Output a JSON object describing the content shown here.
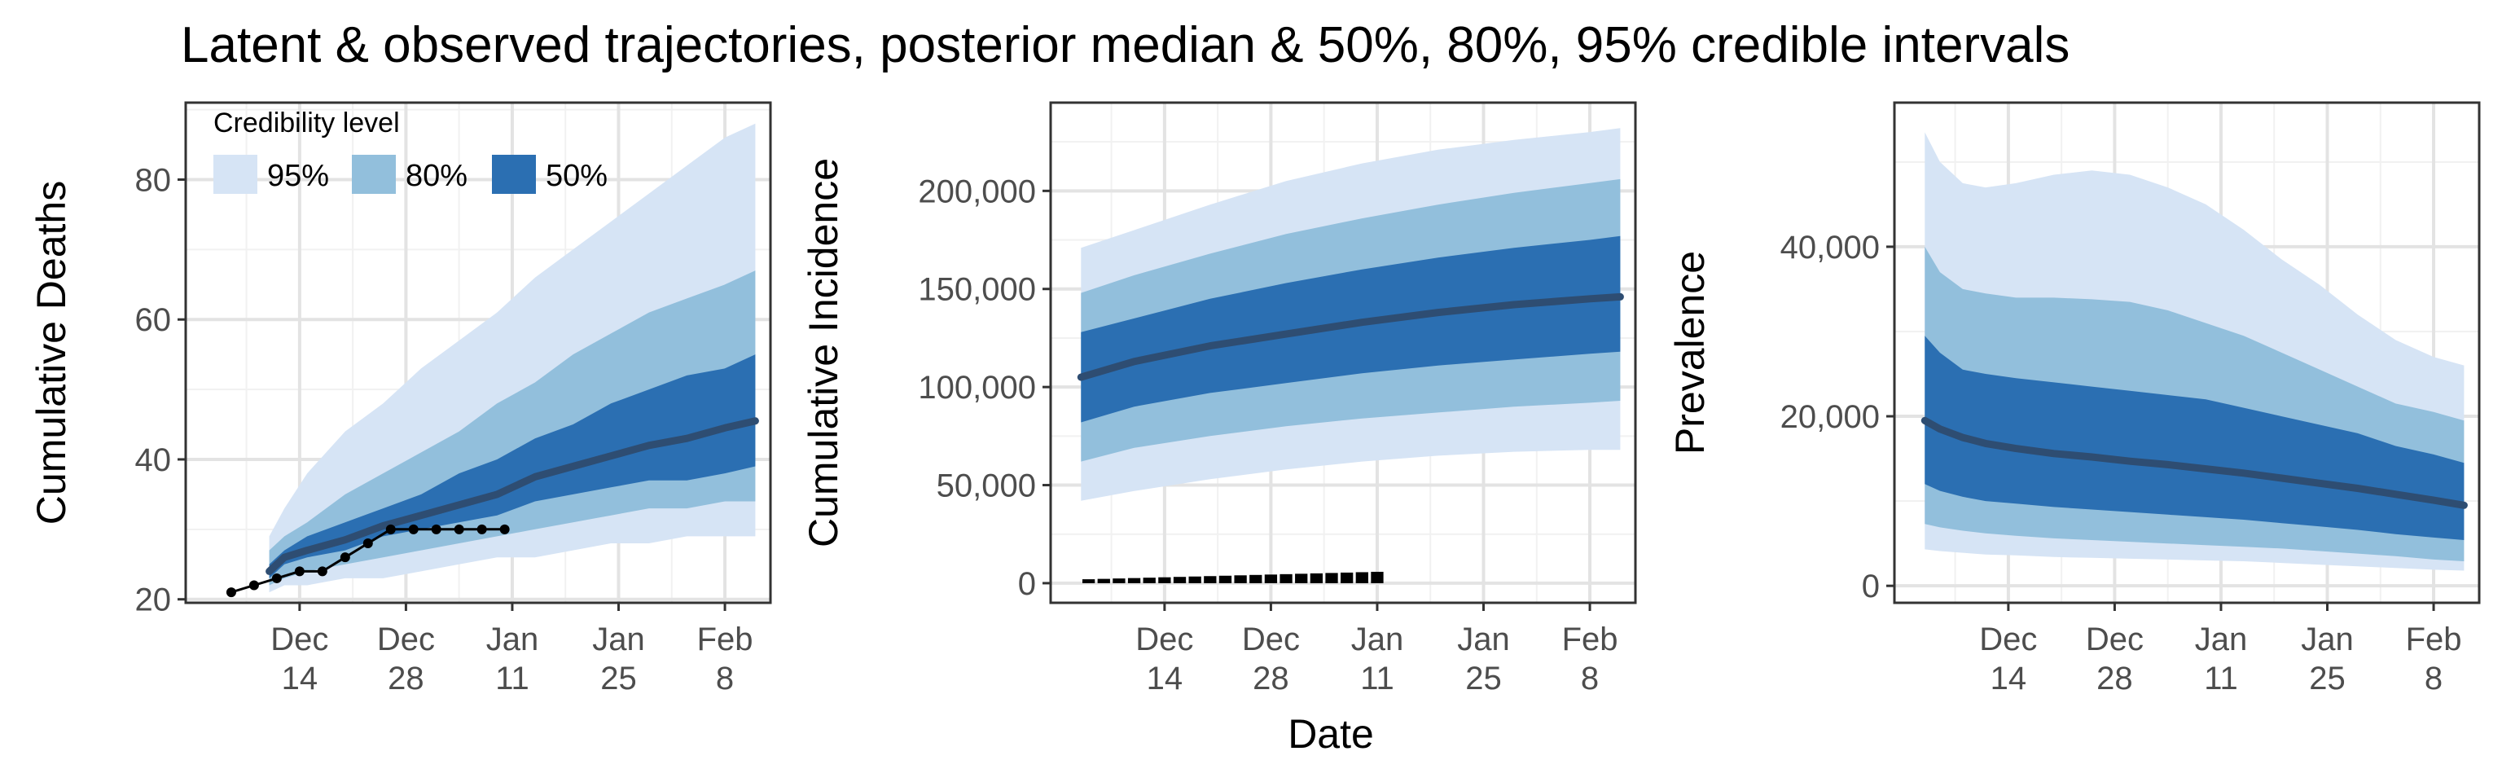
{
  "title": "Latent & observed trajectories, posterior median & 50%, 80%, 95% credible intervals",
  "shared_xlabel": "Date",
  "colors": {
    "band95": "#d6e4f5",
    "band80": "#92bfdc",
    "band50": "#2b6fb2",
    "median": "#2e4d72",
    "observed": "#000000",
    "grid_major": "#e3e3e3",
    "grid_minor": "#f1f1f1",
    "axis_text": "#4d4d4d"
  },
  "legend": {
    "title": "Credibility level",
    "items": [
      {
        "label": "95%",
        "color": "#d6e4f5"
      },
      {
        "label": "80%",
        "color": "#92bfdc"
      },
      {
        "label": "50%",
        "color": "#2b6fb2"
      }
    ],
    "placement": "top-left inside first panel"
  },
  "chart_data": [
    {
      "type": "area",
      "ylabel": "Cumulative Deaths",
      "x_ticks": [
        "Dec\n14",
        "Dec\n28",
        "Jan\n11",
        "Jan\n25",
        "Feb\n8"
      ],
      "x_tick_days": [
        14,
        28,
        42,
        56,
        70
      ],
      "xlim_days": [
        -1,
        76
      ],
      "ylim": [
        19.5,
        91
      ],
      "y_ticks": [
        20,
        40,
        60,
        80
      ],
      "y_tick_labels": [
        "20",
        "40",
        "60",
        "80"
      ],
      "grid": true,
      "bands": {
        "x": [
          10,
          12,
          15,
          20,
          25,
          30,
          35,
          40,
          45,
          50,
          55,
          60,
          65,
          70,
          74
        ],
        "q025": [
          21,
          22,
          22,
          23,
          23,
          24,
          25,
          26,
          26,
          27,
          28,
          28,
          29,
          29,
          29
        ],
        "q10": [
          22,
          23,
          24,
          25,
          26,
          27,
          28,
          29,
          30,
          31,
          32,
          33,
          33,
          34,
          34
        ],
        "q25": [
          23,
          25,
          26,
          27,
          29,
          30,
          31,
          32,
          34,
          35,
          36,
          37,
          37,
          38,
          39
        ],
        "q75": [
          25,
          27,
          29,
          31,
          33,
          35,
          38,
          40,
          43,
          45,
          48,
          50,
          52,
          53,
          55
        ],
        "q90": [
          27,
          29,
          31,
          35,
          38,
          41,
          44,
          48,
          51,
          55,
          58,
          61,
          63,
          65,
          67
        ],
        "q975": [
          29,
          33,
          38,
          44,
          48,
          53,
          57,
          61,
          66,
          70,
          74,
          78,
          82,
          86,
          88
        ]
      },
      "median": {
        "x": [
          10,
          12,
          15,
          20,
          25,
          30,
          35,
          40,
          45,
          50,
          55,
          60,
          65,
          70,
          74
        ],
        "y": [
          24,
          26,
          27,
          28.5,
          30.5,
          32,
          33.5,
          35,
          37.5,
          39,
          40.5,
          42,
          43,
          44.5,
          45.5
        ]
      },
      "observed": {
        "x": [
          5,
          8,
          11,
          14,
          17,
          20,
          23,
          26,
          29,
          32,
          35,
          38,
          41
        ],
        "y": [
          21,
          22,
          23,
          24,
          24,
          26,
          28,
          30,
          30,
          30,
          30,
          30,
          30
        ]
      }
    },
    {
      "type": "area",
      "ylabel": "Cumulative Incidence",
      "x_ticks": [
        "Dec\n14",
        "Dec\n28",
        "Jan\n11",
        "Jan\n25",
        "Feb\n8"
      ],
      "x_tick_days": [
        14,
        28,
        42,
        56,
        70
      ],
      "xlim_days": [
        -1,
        76
      ],
      "ylim": [
        -10000,
        245000
      ],
      "y_ticks": [
        0,
        50000,
        100000,
        150000,
        200000
      ],
      "y_tick_labels": [
        "0",
        "50,000",
        "100,000",
        "150,000",
        "200,000"
      ],
      "grid": true,
      "bands": {
        "x": [
          3,
          10,
          20,
          30,
          40,
          50,
          60,
          70,
          74
        ],
        "q025": [
          42000,
          47000,
          53000,
          58000,
          62000,
          65000,
          67000,
          68000,
          68000
        ],
        "q10": [
          62000,
          69000,
          75000,
          80000,
          84000,
          87000,
          90000,
          92000,
          93000
        ],
        "q25": [
          82000,
          90000,
          97000,
          102000,
          107000,
          111000,
          114000,
          117000,
          118000
        ],
        "q75": [
          128000,
          135000,
          145000,
          153000,
          160000,
          166000,
          171000,
          175000,
          177000
        ],
        "q90": [
          148000,
          157000,
          168000,
          178000,
          186000,
          193000,
          199000,
          204000,
          206000
        ],
        "q975": [
          171000,
          180000,
          193000,
          205000,
          214000,
          221000,
          226000,
          230000,
          232000
        ]
      },
      "median": {
        "x": [
          3,
          10,
          20,
          30,
          40,
          50,
          60,
          70,
          74
        ],
        "y": [
          105000,
          113000,
          121000,
          127000,
          133000,
          138000,
          142000,
          145000,
          146000
        ]
      },
      "observed_bars": {
        "x": [
          4,
          6,
          8,
          10,
          12,
          14,
          16,
          18,
          20,
          22,
          24,
          26,
          28,
          30,
          32,
          34,
          36,
          38,
          40,
          42
        ],
        "y": [
          2000,
          2200,
          2400,
          2600,
          2800,
          3000,
          3200,
          3400,
          3600,
          3800,
          4000,
          4200,
          4400,
          4600,
          4800,
          5000,
          5200,
          5400,
          5600,
          5800
        ]
      }
    },
    {
      "type": "area",
      "ylabel": "Prevalence",
      "x_ticks": [
        "Dec\n14",
        "Dec\n28",
        "Jan\n11",
        "Jan\n25",
        "Feb\n8"
      ],
      "x_tick_days": [
        14,
        28,
        42,
        56,
        70
      ],
      "xlim_days": [
        -1,
        76
      ],
      "ylim": [
        -2000,
        57000
      ],
      "y_ticks": [
        0,
        20000,
        40000
      ],
      "y_tick_labels": [
        "0",
        "20,000",
        "40,000"
      ],
      "grid": true,
      "bands": {
        "x": [
          3,
          5,
          8,
          11,
          15,
          20,
          25,
          30,
          35,
          40,
          45,
          50,
          55,
          60,
          65,
          70,
          74
        ],
        "q025": [
          4300,
          4100,
          3900,
          3700,
          3600,
          3400,
          3300,
          3200,
          3100,
          3000,
          2900,
          2700,
          2500,
          2300,
          2100,
          1900,
          1800
        ],
        "q10": [
          7300,
          6900,
          6500,
          6200,
          5900,
          5600,
          5400,
          5200,
          5000,
          4800,
          4600,
          4400,
          4100,
          3800,
          3500,
          3100,
          2900
        ],
        "q25": [
          12000,
          11200,
          10500,
          10000,
          9700,
          9300,
          9000,
          8700,
          8400,
          8100,
          7800,
          7400,
          7000,
          6600,
          6100,
          5700,
          5400
        ],
        "q75": [
          29500,
          27500,
          25500,
          25000,
          24500,
          24000,
          23500,
          23000,
          22500,
          22000,
          21000,
          20000,
          19000,
          18000,
          16500,
          15500,
          14500
        ],
        "q90": [
          40000,
          37000,
          35000,
          34500,
          34000,
          34000,
          33800,
          33500,
          32500,
          31000,
          29500,
          27500,
          25500,
          23500,
          21500,
          20500,
          19500
        ],
        "q975": [
          53500,
          50000,
          47500,
          47000,
          47500,
          48500,
          49000,
          48500,
          47000,
          45000,
          42000,
          38500,
          35500,
          32000,
          29000,
          27000,
          26000
        ]
      },
      "median": {
        "x": [
          3,
          5,
          8,
          11,
          15,
          20,
          25,
          30,
          35,
          40,
          45,
          50,
          55,
          60,
          65,
          70,
          74
        ],
        "y": [
          19500,
          18500,
          17500,
          16800,
          16200,
          15600,
          15200,
          14700,
          14300,
          13800,
          13300,
          12700,
          12100,
          11500,
          10800,
          10100,
          9500
        ]
      }
    }
  ]
}
